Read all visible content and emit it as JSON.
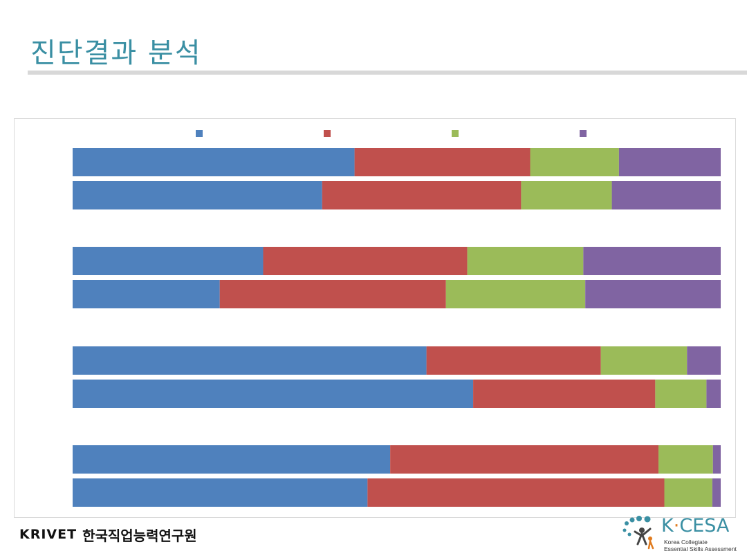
{
  "slide": {
    "title": "진단결과 분석",
    "org_logo_text": "KRIVET",
    "org_name": "한국직업능력연구원",
    "kcesa": {
      "name_left": "K",
      "name_dot": "·",
      "name_right": "CESA",
      "tagline_1": "Korea Collegiate",
      "tagline_2": "Essential Skills Assessment"
    }
  },
  "colors": {
    "title": "#3a8fa3",
    "series": [
      "#4f81bd",
      "#c0504d",
      "#9bbb59",
      "#8064a2"
    ]
  },
  "chart_data": {
    "type": "bar",
    "orientation": "horizontal",
    "stacked": "percent",
    "title": "",
    "xlabel": "",
    "ylabel": "",
    "xlim": [
      0,
      100
    ],
    "legend_position": "top",
    "grid": false,
    "categories": [
      "",
      "",
      "",
      "",
      "",
      "",
      "",
      ""
    ],
    "series": [
      {
        "values": [
          43.5,
          38.5,
          29.4,
          22.7,
          54.6,
          61.8,
          49.0,
          45.5
        ]
      },
      {
        "values": [
          27.1,
          30.7,
          31.5,
          34.9,
          26.9,
          28.1,
          41.4,
          45.8
        ]
      },
      {
        "values": [
          13.7,
          14.0,
          17.9,
          21.5,
          13.3,
          7.9,
          8.4,
          7.4
        ]
      },
      {
        "values": [
          15.7,
          16.8,
          21.2,
          20.9,
          5.2,
          2.2,
          1.2,
          1.3
        ]
      }
    ]
  }
}
